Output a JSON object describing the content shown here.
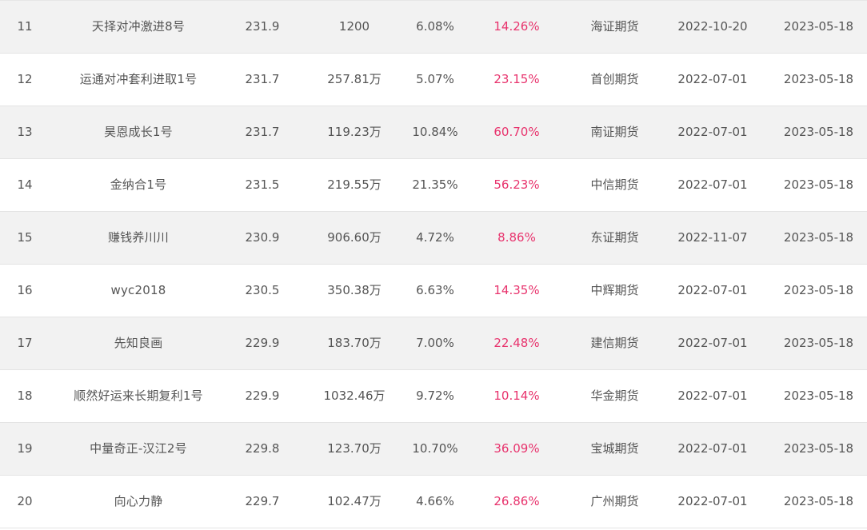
{
  "table": {
    "rows": [
      {
        "rank": "11",
        "name": "天择对冲激进8号",
        "score": "231.9",
        "scale": "1200",
        "drawdown": "6.08%",
        "return": "14.26%",
        "broker": "海证期货",
        "start": "2022-10-20",
        "end": "2023-05-18"
      },
      {
        "rank": "12",
        "name": "运通对冲套利进取1号",
        "score": "231.7",
        "scale": "257.81万",
        "drawdown": "5.07%",
        "return": "23.15%",
        "broker": "首创期货",
        "start": "2022-07-01",
        "end": "2023-05-18"
      },
      {
        "rank": "13",
        "name": "昊恩成长1号",
        "score": "231.7",
        "scale": "119.23万",
        "drawdown": "10.84%",
        "return": "60.70%",
        "broker": "南证期货",
        "start": "2022-07-01",
        "end": "2023-05-18"
      },
      {
        "rank": "14",
        "name": "金纳合1号",
        "score": "231.5",
        "scale": "219.55万",
        "drawdown": "21.35%",
        "return": "56.23%",
        "broker": "中信期货",
        "start": "2022-07-01",
        "end": "2023-05-18"
      },
      {
        "rank": "15",
        "name": "赚钱养川川",
        "score": "230.9",
        "scale": "906.60万",
        "drawdown": "4.72%",
        "return": "8.86%",
        "broker": "东证期货",
        "start": "2022-11-07",
        "end": "2023-05-18"
      },
      {
        "rank": "16",
        "name": "wyc2018",
        "score": "230.5",
        "scale": "350.38万",
        "drawdown": "6.63%",
        "return": "14.35%",
        "broker": "中辉期货",
        "start": "2022-07-01",
        "end": "2023-05-18"
      },
      {
        "rank": "17",
        "name": "先知良画",
        "score": "229.9",
        "scale": "183.70万",
        "drawdown": "7.00%",
        "return": "22.48%",
        "broker": "建信期货",
        "start": "2022-07-01",
        "end": "2023-05-18"
      },
      {
        "rank": "18",
        "name": "顺然好运来长期复利1号",
        "score": "229.9",
        "scale": "1032.46万",
        "drawdown": "9.72%",
        "return": "10.14%",
        "broker": "华金期货",
        "start": "2022-07-01",
        "end": "2023-05-18"
      },
      {
        "rank": "19",
        "name": "中量奇正-汉江2号",
        "score": "229.8",
        "scale": "123.70万",
        "drawdown": "10.70%",
        "return": "36.09%",
        "broker": "宝城期货",
        "start": "2022-07-01",
        "end": "2023-05-18"
      },
      {
        "rank": "20",
        "name": "向心力静",
        "score": "229.7",
        "scale": "102.47万",
        "drawdown": "4.66%",
        "return": "26.86%",
        "broker": "广州期货",
        "start": "2022-07-01",
        "end": "2023-05-18"
      }
    ]
  },
  "colors": {
    "rate": "#e8336d",
    "text": "#555555",
    "stripe": "#f2f2f2"
  }
}
